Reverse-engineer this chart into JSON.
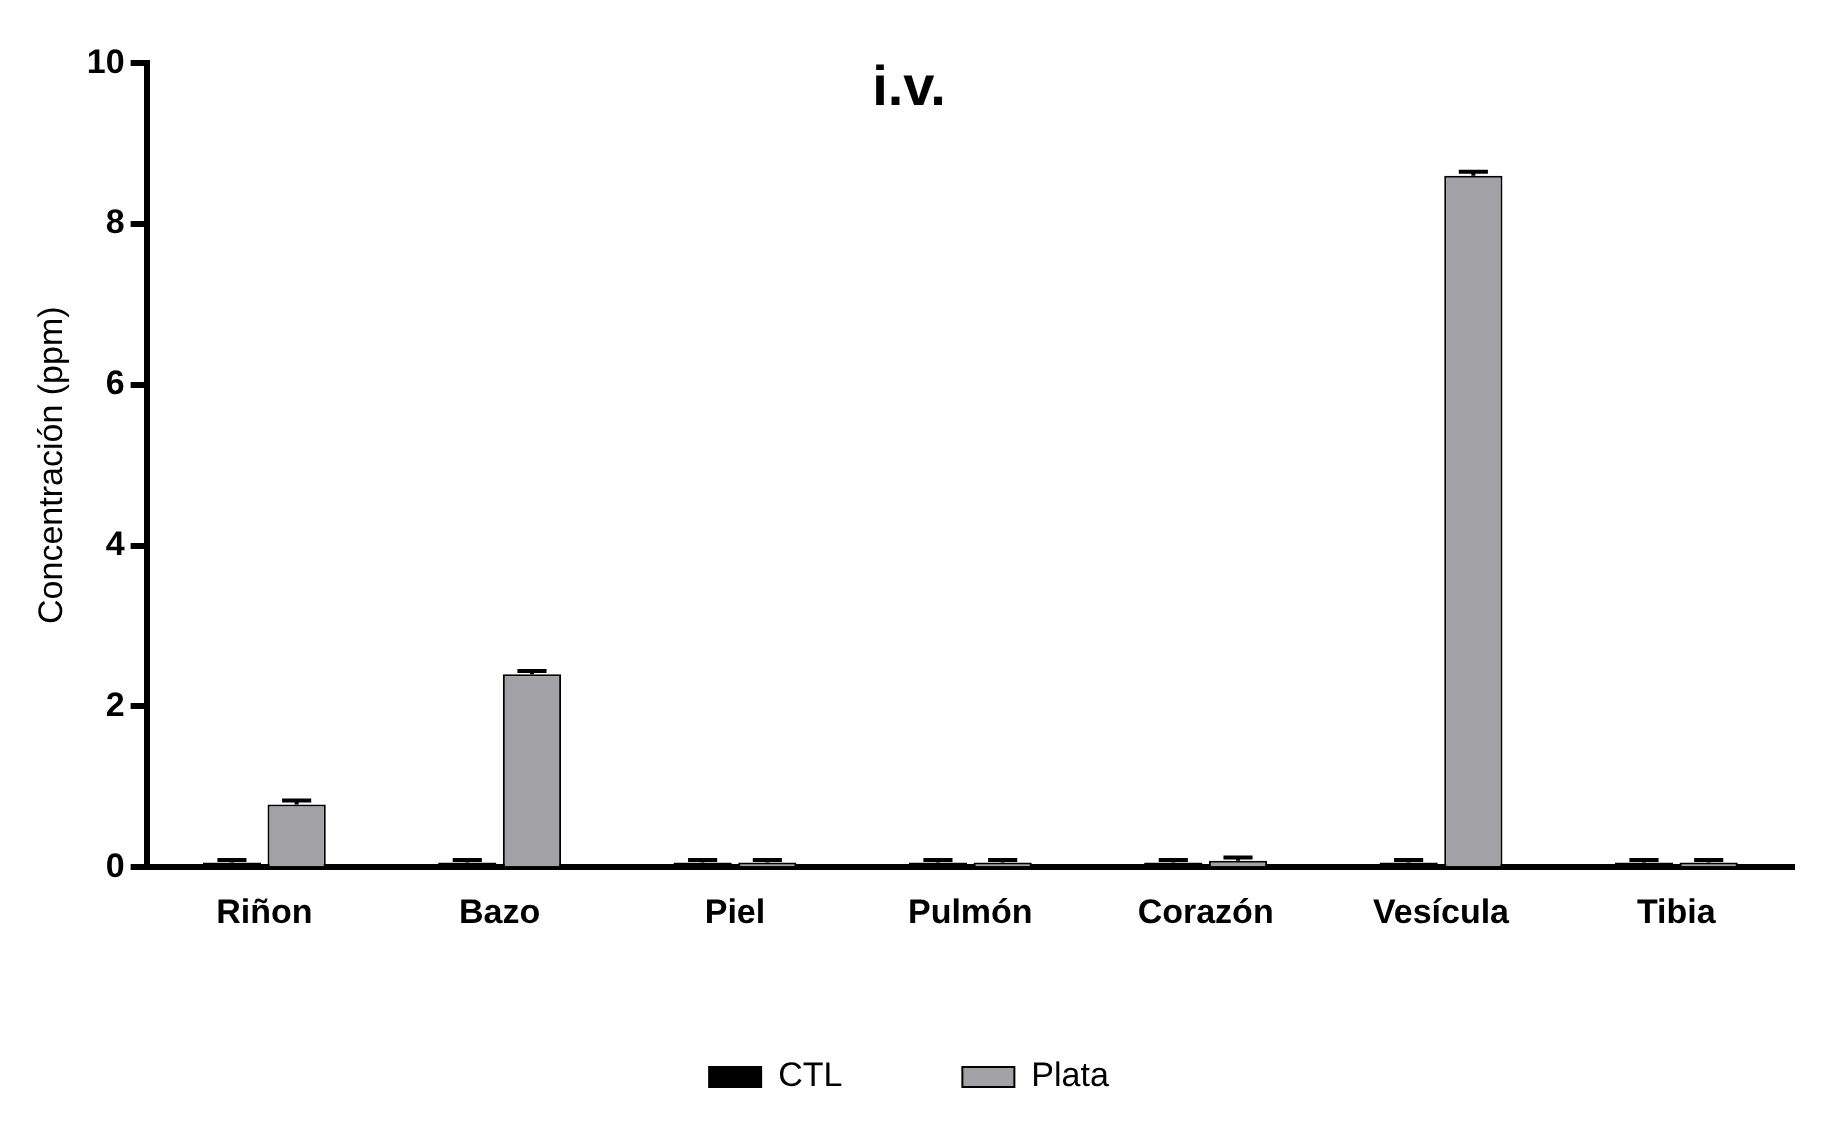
{
  "chart_data": {
    "type": "bar",
    "title": "i.v.",
    "ylabel": "Concentración (ppm)",
    "categories": [
      "Riñon",
      "Bazo",
      "Piel",
      "Pulmón",
      "Corazón",
      "Vesícula",
      "Tibia"
    ],
    "series": [
      {
        "name": "CTL",
        "color": "#000000",
        "values": [
          0.06,
          0.06,
          0.06,
          0.06,
          0.06,
          0.06,
          0.06
        ],
        "errors": [
          0.03,
          0.03,
          0.03,
          0.03,
          0.03,
          0.03,
          0.03
        ]
      },
      {
        "name": "Plata",
        "color": "#a2a1a6",
        "values": [
          0.78,
          2.4,
          0.06,
          0.06,
          0.08,
          8.6,
          0.06
        ],
        "errors": [
          0.05,
          0.04,
          0.03,
          0.03,
          0.04,
          0.05,
          0.03
        ]
      }
    ],
    "ylim": [
      0,
      10
    ],
    "yticks": [
      0,
      2,
      4,
      6,
      8,
      10
    ],
    "grid": false,
    "legend": "bottom"
  }
}
